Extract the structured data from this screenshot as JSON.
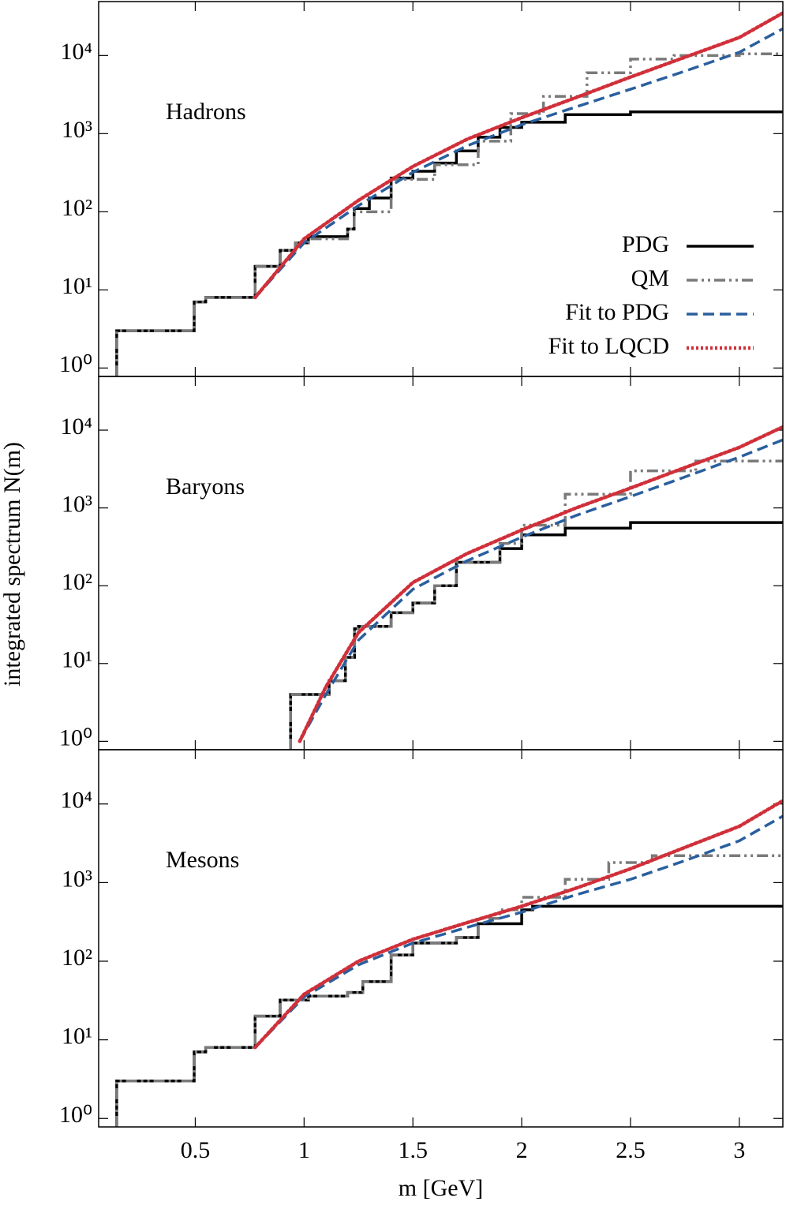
{
  "chart_data": [
    {
      "type": "line",
      "label": "Hadrons",
      "log_y": true,
      "legend": "center right",
      "xlim": [
        0.056,
        3.2
      ],
      "ylim": [
        0.78,
        49000
      ],
      "xticks": [
        0.5,
        1,
        1.5,
        2,
        2.5,
        3
      ],
      "yticks": [
        {
          "value": 1,
          "label": "10⁰"
        },
        {
          "value": 10,
          "label": "10¹"
        },
        {
          "value": 100,
          "label": "10²"
        },
        {
          "value": 1000,
          "label": "10³"
        },
        {
          "value": 10000,
          "label": "10⁴"
        }
      ],
      "series": [
        {
          "name": "PDG",
          "color": "#000000",
          "style": "step",
          "x": [
            0.139,
            0.495,
            0.548,
            0.775,
            0.89,
            0.96,
            1.02,
            1.2,
            1.23,
            1.3,
            1.4,
            1.5,
            1.6,
            1.7,
            1.8,
            1.9,
            2.0,
            2.2,
            2.5,
            3.2
          ],
          "values": [
            3,
            7,
            8,
            20,
            32,
            40,
            48,
            60,
            110,
            150,
            270,
            330,
            420,
            600,
            900,
            1200,
            1400,
            1750,
            1900,
            1950
          ]
        },
        {
          "name": "QM",
          "color": "#7a7a7a",
          "style": "step-dashdot",
          "x": [
            0.139,
            0.495,
            0.548,
            0.775,
            0.89,
            0.96,
            1.02,
            1.2,
            1.23,
            1.4,
            1.6,
            1.8,
            1.95,
            2.1,
            2.3,
            2.5,
            2.7,
            3.0,
            3.2
          ],
          "values": [
            3,
            7,
            8,
            20,
            32,
            40,
            45,
            60,
            100,
            260,
            400,
            800,
            1800,
            3000,
            6000,
            9000,
            10000,
            10500,
            10500
          ]
        },
        {
          "name": "Fit to PDG",
          "color": "#2a5f9e",
          "style": "dashed",
          "x": [
            0.775,
            1.0,
            1.25,
            1.5,
            1.75,
            2.0,
            2.25,
            2.5,
            2.75,
            3.0,
            3.2
          ],
          "values": [
            8,
            40,
            120,
            320,
            700,
            1300,
            2200,
            3700,
            6300,
            11000,
            22000
          ]
        },
        {
          "name": "Fit to LQCD",
          "color": "#d0303a",
          "style": "dotted",
          "x": [
            0.775,
            1.0,
            1.25,
            1.5,
            1.75,
            2.0,
            2.25,
            2.5,
            2.75,
            3.0,
            3.2
          ],
          "values": [
            8,
            45,
            140,
            380,
            850,
            1600,
            2900,
            5300,
            9500,
            17000,
            35000
          ]
        }
      ]
    },
    {
      "type": "line",
      "label": "Baryons",
      "log_y": true,
      "ylabel": "integrated spectrum N(m)",
      "xlim": [
        0.056,
        3.2
      ],
      "ylim": [
        0.78,
        49000
      ],
      "xticks": [
        0.5,
        1,
        1.5,
        2,
        2.5,
        3
      ],
      "yticks": [
        {
          "value": 1,
          "label": "10⁰"
        },
        {
          "value": 10,
          "label": "10¹"
        },
        {
          "value": 100,
          "label": "10²"
        },
        {
          "value": 1000,
          "label": "10³"
        },
        {
          "value": 10000,
          "label": "10⁴"
        }
      ],
      "series": [
        {
          "color": "#000000",
          "style": "step",
          "x": [
            0.938,
            1.115,
            1.19,
            1.232,
            1.25,
            1.4,
            1.5,
            1.6,
            1.7,
            1.9,
            2.0,
            2.2,
            2.5,
            3.2
          ],
          "values": [
            4,
            6,
            12,
            28,
            30,
            45,
            60,
            100,
            200,
            300,
            450,
            550,
            650,
            680
          ]
        },
        {
          "color": "#7a7a7a",
          "style": "step-dashdot",
          "x": [
            0.938,
            1.115,
            1.19,
            1.232,
            1.25,
            1.4,
            1.5,
            1.6,
            1.7,
            1.9,
            2.0,
            2.2,
            2.5,
            2.8,
            3.2
          ],
          "values": [
            4,
            6,
            12,
            28,
            30,
            45,
            60,
            100,
            200,
            350,
            600,
            1500,
            3000,
            4000,
            4000
          ]
        },
        {
          "color": "#2a5f9e",
          "style": "dashed",
          "x": [
            0.98,
            1.1,
            1.25,
            1.5,
            1.75,
            2.0,
            2.25,
            2.5,
            2.75,
            3.0,
            3.2
          ],
          "values": [
            1,
            4,
            20,
            90,
            210,
            420,
            800,
            1400,
            2500,
            4500,
            7500
          ]
        },
        {
          "color": "#d0303a",
          "style": "dotted",
          "x": [
            0.98,
            1.1,
            1.25,
            1.5,
            1.75,
            2.0,
            2.25,
            2.5,
            2.75,
            3.0,
            3.2
          ],
          "values": [
            1,
            5,
            25,
            110,
            260,
            520,
            1000,
            1800,
            3300,
            6000,
            11000
          ]
        }
      ]
    },
    {
      "type": "line",
      "label": "Mesons",
      "log_y": true,
      "xlabel": "m [GeV]",
      "xlim": [
        0.056,
        3.2
      ],
      "ylim": [
        0.78,
        49000
      ],
      "xticks": [
        0.5,
        1,
        1.5,
        2,
        2.5,
        3
      ],
      "yticks": [
        {
          "value": 1,
          "label": "10⁰"
        },
        {
          "value": 10,
          "label": "10¹"
        },
        {
          "value": 100,
          "label": "10²"
        },
        {
          "value": 1000,
          "label": "10³"
        },
        {
          "value": 10000,
          "label": "10⁴"
        }
      ],
      "series": [
        {
          "color": "#000000",
          "style": "step",
          "x": [
            0.139,
            0.495,
            0.548,
            0.775,
            0.89,
            1.02,
            1.2,
            1.27,
            1.4,
            1.5,
            1.7,
            1.8,
            2.0,
            2.05,
            3.2
          ],
          "values": [
            3,
            7,
            8,
            20,
            32,
            36,
            40,
            55,
            120,
            170,
            200,
            300,
            450,
            500,
            500
          ]
        },
        {
          "color": "#7a7a7a",
          "style": "step-dashdot",
          "x": [
            0.139,
            0.495,
            0.548,
            0.775,
            0.89,
            1.02,
            1.2,
            1.27,
            1.4,
            1.5,
            1.7,
            1.8,
            1.9,
            2.0,
            2.2,
            2.4,
            2.6,
            3.2
          ],
          "values": [
            3,
            7,
            8,
            20,
            32,
            36,
            40,
            55,
            120,
            170,
            200,
            350,
            450,
            650,
            1100,
            1800,
            2200,
            2200
          ]
        },
        {
          "color": "#2a5f9e",
          "style": "dashed",
          "x": [
            0.775,
            1.0,
            1.25,
            1.5,
            1.75,
            2.0,
            2.25,
            2.5,
            2.75,
            3.0,
            3.2
          ],
          "values": [
            8,
            35,
            90,
            170,
            270,
            420,
            700,
            1100,
            1900,
            3400,
            7000
          ]
        },
        {
          "color": "#d0303a",
          "style": "dotted",
          "x": [
            0.775,
            1.0,
            1.25,
            1.5,
            1.75,
            2.0,
            2.25,
            2.5,
            2.75,
            3.0,
            3.2
          ],
          "values": [
            8,
            38,
            100,
            190,
            310,
            500,
            850,
            1500,
            2800,
            5200,
            11000
          ]
        }
      ]
    }
  ]
}
